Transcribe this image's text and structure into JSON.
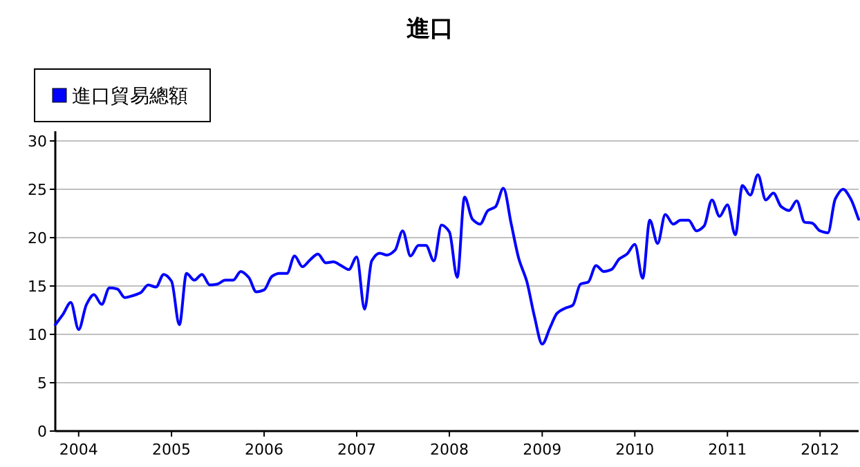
{
  "chart_data": {
    "type": "line",
    "title": "進口",
    "legend": "top left",
    "grid": "y",
    "marker": "none",
    "line_style": "solid",
    "x": [
      "2003-10",
      "2003-11",
      "2003-12",
      "2004-01",
      "2004-02",
      "2004-03",
      "2004-04",
      "2004-05",
      "2004-06",
      "2004-07",
      "2004-08",
      "2004-09",
      "2004-10",
      "2004-11",
      "2004-12",
      "2005-01",
      "2005-02",
      "2005-03",
      "2005-04",
      "2005-05",
      "2005-06",
      "2005-07",
      "2005-08",
      "2005-09",
      "2005-10",
      "2005-11",
      "2005-12",
      "2006-01",
      "2006-02",
      "2006-03",
      "2006-04",
      "2006-05",
      "2006-06",
      "2006-07",
      "2006-08",
      "2006-09",
      "2006-10",
      "2006-11",
      "2006-12",
      "2007-01",
      "2007-02",
      "2007-03",
      "2007-04",
      "2007-05",
      "2007-06",
      "2007-07",
      "2007-08",
      "2007-09",
      "2007-10",
      "2007-11",
      "2007-12",
      "2008-01",
      "2008-02",
      "2008-03",
      "2008-04",
      "2008-05",
      "2008-06",
      "2008-07",
      "2008-08",
      "2008-09",
      "2008-10",
      "2008-11",
      "2008-12",
      "2009-01",
      "2009-02",
      "2009-03",
      "2009-04",
      "2009-05",
      "2009-06",
      "2009-07",
      "2009-08",
      "2009-09",
      "2009-10",
      "2009-11",
      "2009-12",
      "2010-01",
      "2010-02",
      "2010-03",
      "2010-04",
      "2010-05",
      "2010-06",
      "2010-07",
      "2010-08",
      "2010-09",
      "2010-10",
      "2010-11",
      "2010-12",
      "2011-01",
      "2011-02",
      "2011-03",
      "2011-04",
      "2011-05",
      "2011-06",
      "2011-07",
      "2011-08",
      "2011-09",
      "2011-10",
      "2011-11",
      "2011-12",
      "2012-01",
      "2012-02",
      "2012-03",
      "2012-04",
      "2012-05",
      "2012-06"
    ],
    "series": [
      {
        "name": "進口貿易總額",
        "color": "#0000ff",
        "values": [
          11.0,
          12.1,
          13.3,
          10.5,
          13.1,
          14.1,
          13.1,
          14.8,
          14.7,
          13.8,
          14.0,
          14.3,
          15.1,
          14.9,
          16.2,
          15.5,
          11.0,
          16.3,
          15.6,
          16.2,
          15.1,
          15.2,
          15.6,
          15.6,
          16.5,
          15.9,
          14.4,
          14.6,
          16.0,
          16.3,
          16.3,
          18.1,
          17.0,
          17.7,
          18.3,
          17.4,
          17.5,
          17.1,
          16.7,
          18.0,
          12.6,
          17.6,
          18.4,
          18.2,
          18.7,
          20.7,
          18.1,
          19.2,
          19.2,
          17.6,
          21.3,
          20.6,
          15.9,
          24.2,
          21.9,
          21.4,
          22.8,
          23.2,
          25.1,
          21.4,
          17.8,
          15.5,
          11.9,
          9.0,
          10.7,
          12.2,
          12.7,
          13.0,
          15.2,
          15.4,
          17.1,
          16.5,
          16.7,
          17.8,
          18.3,
          19.3,
          15.8,
          21.8,
          19.4,
          22.4,
          21.4,
          21.8,
          21.8,
          20.7,
          21.2,
          23.9,
          22.2,
          23.4,
          20.3,
          25.4,
          24.4,
          26.5,
          23.9,
          24.6,
          23.2,
          22.8,
          23.8,
          21.6,
          21.5,
          20.7,
          20.5,
          24.0,
          25.0,
          24.0,
          21.9
        ]
      }
    ],
    "xlim": [
      "2003-10",
      "2012-06"
    ],
    "xticks": [
      "2004",
      "2005",
      "2006",
      "2007",
      "2008",
      "2009",
      "2010",
      "2011",
      "2012"
    ],
    "ylim": [
      0,
      31
    ],
    "yticks": [
      0,
      5,
      10,
      15,
      20,
      25,
      30
    ]
  }
}
